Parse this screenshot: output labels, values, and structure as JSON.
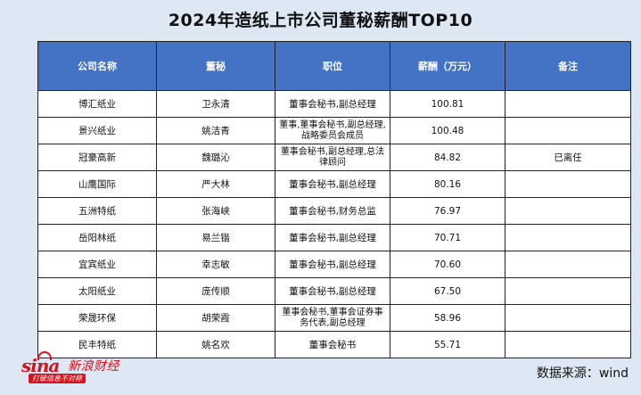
{
  "title": "2024年造纸上市公司董秘薪酬TOP10",
  "table": {
    "headers": [
      "公司名称",
      "董秘",
      "职位",
      "薪酬（万元）",
      "备注"
    ],
    "rows": [
      {
        "company": "博汇纸业",
        "secretary": "卫永清",
        "position": "董事会秘书,副总经理",
        "salary": "100.81",
        "note": ""
      },
      {
        "company": "景兴纸业",
        "secretary": "姚洁青",
        "position": "董事,董事会秘书,副总经理,战略委员会成员",
        "salary": "100.48",
        "note": ""
      },
      {
        "company": "冠豪高新",
        "secretary": "魏璐沁",
        "position": "董事会秘书,副总经理,总法律顾问",
        "salary": "84.82",
        "note": "已离任"
      },
      {
        "company": "山鹰国际",
        "secretary": "严大林",
        "position": "董事会秘书,副总经理",
        "salary": "80.16",
        "note": ""
      },
      {
        "company": "五洲特纸",
        "secretary": "张海峡",
        "position": "董事会秘书,财务总监",
        "salary": "76.97",
        "note": ""
      },
      {
        "company": "岳阳林纸",
        "secretary": "易兰锴",
        "position": "董事会秘书,副总经理",
        "salary": "70.71",
        "note": ""
      },
      {
        "company": "宜宾纸业",
        "secretary": "幸志敏",
        "position": "董事会秘书,副总经理",
        "salary": "70.60",
        "note": ""
      },
      {
        "company": "太阳纸业",
        "secretary": "庞传顺",
        "position": "董事会秘书,副总经理",
        "salary": "67.50",
        "note": ""
      },
      {
        "company": "荣晟环保",
        "secretary": "胡荣霞",
        "position": "董事会秘书,董事会证券事务代表,副总经理",
        "salary": "58.96",
        "note": ""
      },
      {
        "company": "民丰特纸",
        "secretary": "姚名欢",
        "position": "董事会秘书",
        "salary": "55.71",
        "note": ""
      }
    ]
  },
  "logo": {
    "word": "sina",
    "name": "新浪财经",
    "slogan": "打破信息不对称",
    "brand_color": "#d8121b"
  },
  "source": "数据来源：wind",
  "colors": {
    "background": "#dde8f4",
    "header_fill": "#4472c4",
    "header_text": "#ffffff"
  }
}
